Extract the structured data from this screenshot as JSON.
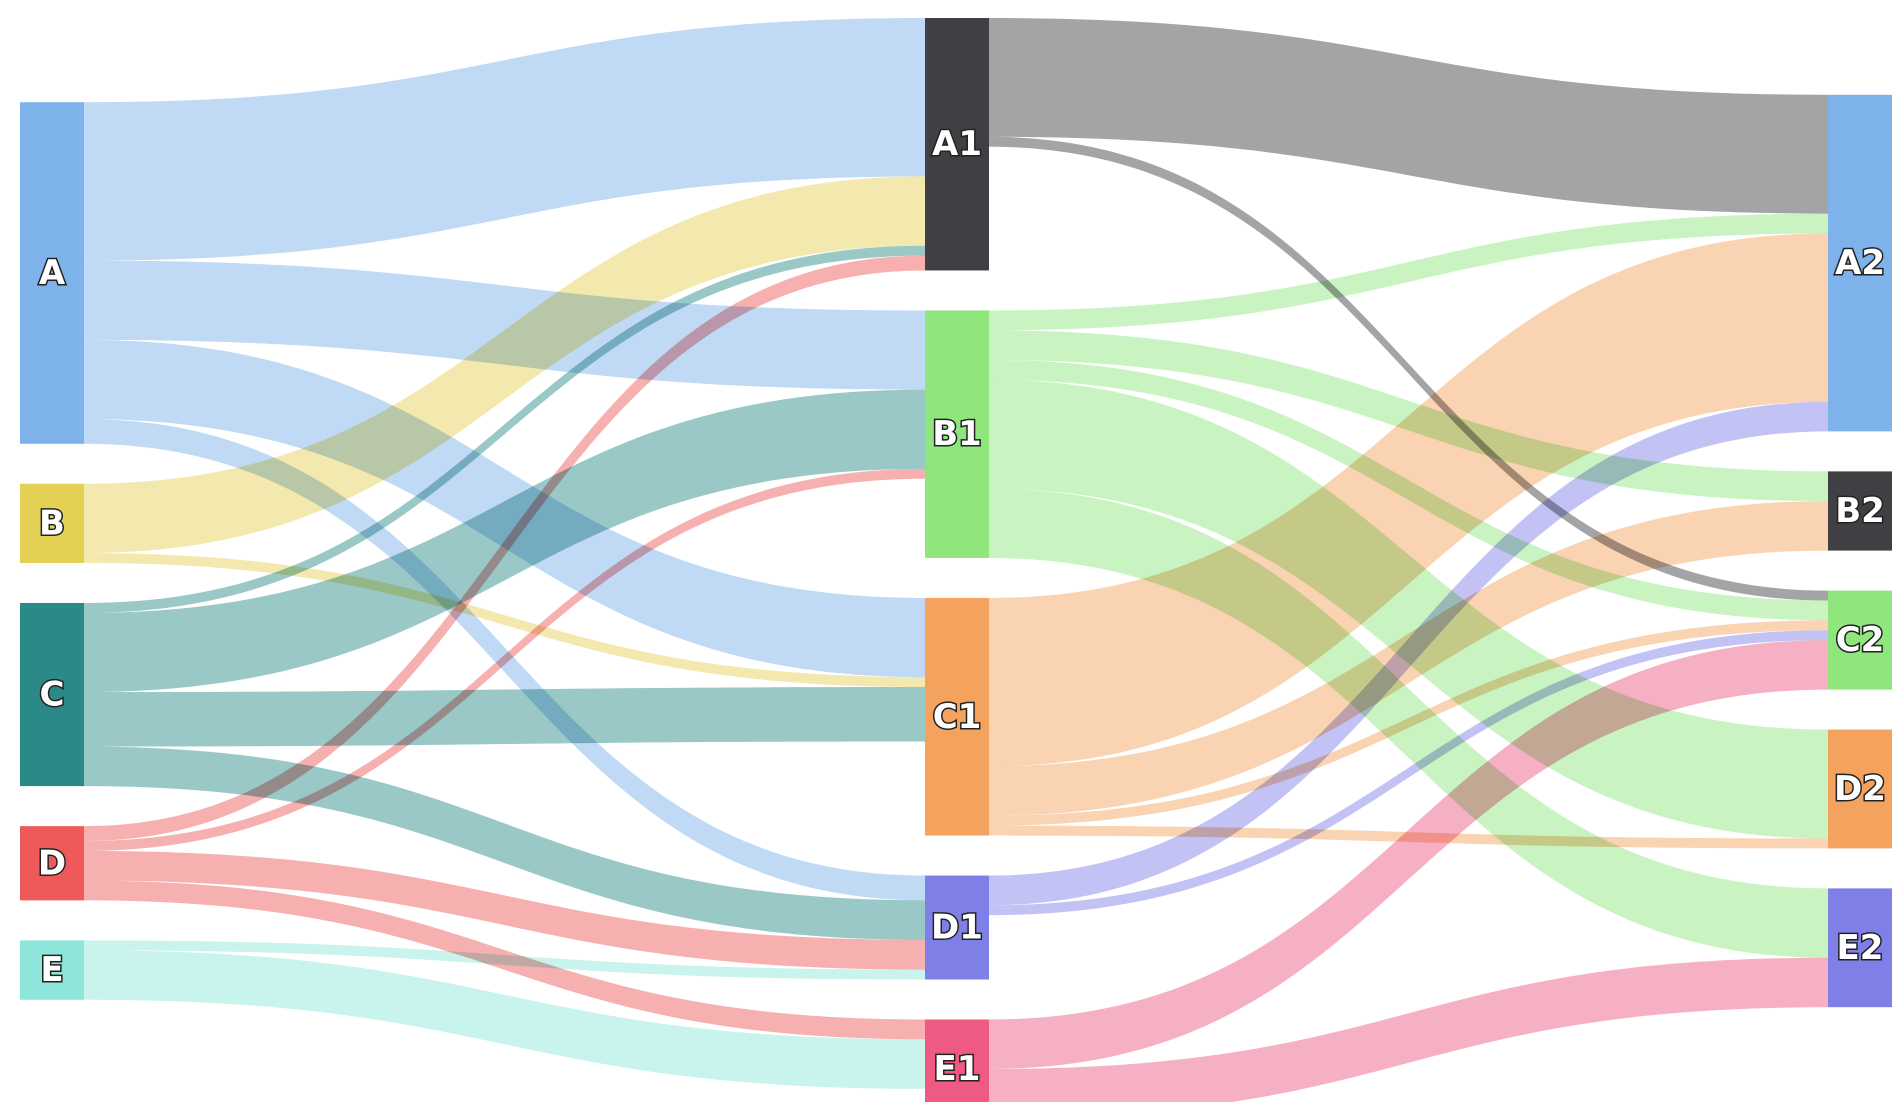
{
  "chart_data": {
    "type": "sankey",
    "title": "",
    "nodes": [
      {
        "id": "A",
        "label": "A",
        "column": 0,
        "color": "#7DB3EA",
        "link_color": "#BDD8F4"
      },
      {
        "id": "B",
        "label": "B",
        "column": 0,
        "color": "#E3D055",
        "link_color": "#F2E8AA"
      },
      {
        "id": "C",
        "label": "C",
        "column": 0,
        "color": "#2B8A87",
        "link_color": "#95C5C3"
      },
      {
        "id": "D",
        "label": "D",
        "column": 0,
        "color": "#EE5A5A",
        "link_color": "#F6ACAC"
      },
      {
        "id": "E",
        "label": "E",
        "column": 0,
        "color": "#8EE5DA",
        "link_color": "#C6F2EC"
      },
      {
        "id": "A1",
        "label": "A1",
        "column": 1,
        "color": "#3F3F44",
        "link_color": "#9F9FA1"
      },
      {
        "id": "B1",
        "label": "B1",
        "column": 1,
        "color": "#8EE67D",
        "link_color": "#C6F2BE"
      },
      {
        "id": "C1",
        "label": "C1",
        "column": 1,
        "color": "#F3A35D",
        "link_color": "#F9D1AE"
      },
      {
        "id": "D1",
        "label": "D1",
        "column": 1,
        "color": "#7F7FE8",
        "link_color": "#BFBFF3"
      },
      {
        "id": "E1",
        "label": "E1",
        "column": 1,
        "color": "#EE5A82",
        "link_color": "#F6ACC0"
      },
      {
        "id": "A2",
        "label": "A2",
        "column": 2,
        "color": "#7DB3EA",
        "link_color": "#BDD8F4"
      },
      {
        "id": "B2",
        "label": "B2",
        "column": 2,
        "color": "#3F3F44",
        "link_color": "#9F9FA1"
      },
      {
        "id": "C2",
        "label": "C2",
        "column": 2,
        "color": "#8EE67D",
        "link_color": "#C6F2BE"
      },
      {
        "id": "D2",
        "label": "D2",
        "column": 2,
        "color": "#F3A35D",
        "link_color": "#F9D1AE"
      },
      {
        "id": "E2",
        "label": "E2",
        "column": 2,
        "color": "#7F7FE8",
        "link_color": "#BFBFF3"
      }
    ],
    "links": [
      {
        "source": "A",
        "target": "A1",
        "value": 16
      },
      {
        "source": "A",
        "target": "B1",
        "value": 8
      },
      {
        "source": "A",
        "target": "C1",
        "value": 8
      },
      {
        "source": "A",
        "target": "D1",
        "value": 2.5
      },
      {
        "source": "B",
        "target": "A1",
        "value": 7
      },
      {
        "source": "B",
        "target": "C1",
        "value": 1
      },
      {
        "source": "C",
        "target": "A1",
        "value": 1
      },
      {
        "source": "C",
        "target": "B1",
        "value": 8
      },
      {
        "source": "C",
        "target": "C1",
        "value": 5.5
      },
      {
        "source": "C",
        "target": "D1",
        "value": 4
      },
      {
        "source": "D",
        "target": "A1",
        "value": 1.5
      },
      {
        "source": "D",
        "target": "B1",
        "value": 1
      },
      {
        "source": "D",
        "target": "D1",
        "value": 3
      },
      {
        "source": "D",
        "target": "E1",
        "value": 2
      },
      {
        "source": "E",
        "target": "D1",
        "value": 1
      },
      {
        "source": "E",
        "target": "E1",
        "value": 5
      },
      {
        "source": "A1",
        "target": "A2",
        "value": 12
      },
      {
        "source": "A1",
        "target": "C2",
        "value": 1
      },
      {
        "source": "B1",
        "target": "A2",
        "value": 2
      },
      {
        "source": "B1",
        "target": "B2",
        "value": 3
      },
      {
        "source": "B1",
        "target": "C2",
        "value": 2
      },
      {
        "source": "B1",
        "target": "D2",
        "value": 11
      },
      {
        "source": "B1",
        "target": "E2",
        "value": 7
      },
      {
        "source": "C1",
        "target": "A2",
        "value": 17
      },
      {
        "source": "C1",
        "target": "B2",
        "value": 5
      },
      {
        "source": "C1",
        "target": "C2",
        "value": 1
      },
      {
        "source": "C1",
        "target": "D2",
        "value": 1
      },
      {
        "source": "D1",
        "target": "A2",
        "value": 3
      },
      {
        "source": "D1",
        "target": "C2",
        "value": 1
      },
      {
        "source": "E1",
        "target": "C2",
        "value": 5
      },
      {
        "source": "E1",
        "target": "E2",
        "value": 5
      }
    ]
  }
}
